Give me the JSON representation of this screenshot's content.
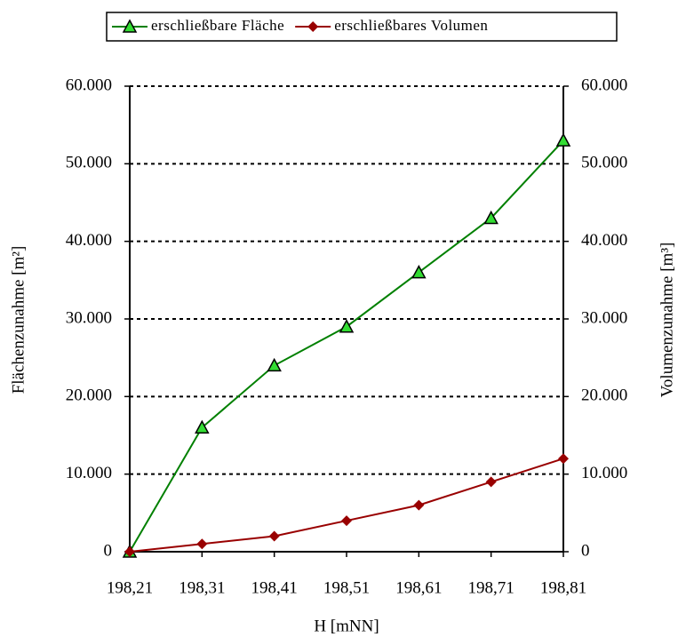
{
  "chart_data": {
    "type": "line",
    "x_label": "H [mNN]",
    "y_label": "Flächenzunahme [m²]",
    "y2_label": "Volumenzunahme [m³]",
    "categories": [
      "198,21",
      "198,31",
      "198,41",
      "198,51",
      "198,61",
      "198,71",
      "198,81"
    ],
    "series": [
      {
        "name": "erschließbare Fläche",
        "color": "#008000",
        "marker": "triangle",
        "marker_color": "#33dd33",
        "values": [
          0,
          16000,
          24000,
          29000,
          36000,
          43000,
          53000
        ]
      },
      {
        "name": "erschließbares Volumen",
        "color": "#990000",
        "marker": "diamond",
        "marker_color": "#990000",
        "axis": "y2",
        "values": [
          0,
          1000,
          2000,
          4000,
          6000,
          9000,
          12000
        ]
      }
    ],
    "ylim": [
      0,
      60000
    ],
    "yticks": [
      0,
      {
        "value": 10000,
        "label": "10.000"
      },
      {
        "value": 20000,
        "label": "20.000"
      },
      {
        "value": 30000,
        "label": "30.000"
      },
      {
        "value": 40000,
        "label": "40.000"
      },
      {
        "value": 50000,
        "label": "50.000"
      },
      {
        "value": 60000,
        "label": "60.000"
      }
    ],
    "y2lim": [
      0,
      60000
    ],
    "y2ticks": [
      0,
      {
        "value": 10000,
        "label": "10.000"
      },
      {
        "value": 20000,
        "label": "20.000"
      },
      {
        "value": 30000,
        "label": "30.000"
      },
      {
        "value": 40000,
        "label": "40.000"
      },
      {
        "value": 50000,
        "label": "50.000"
      },
      {
        "value": 60000,
        "label": "60.000"
      }
    ],
    "grid": true,
    "legend": "top"
  }
}
